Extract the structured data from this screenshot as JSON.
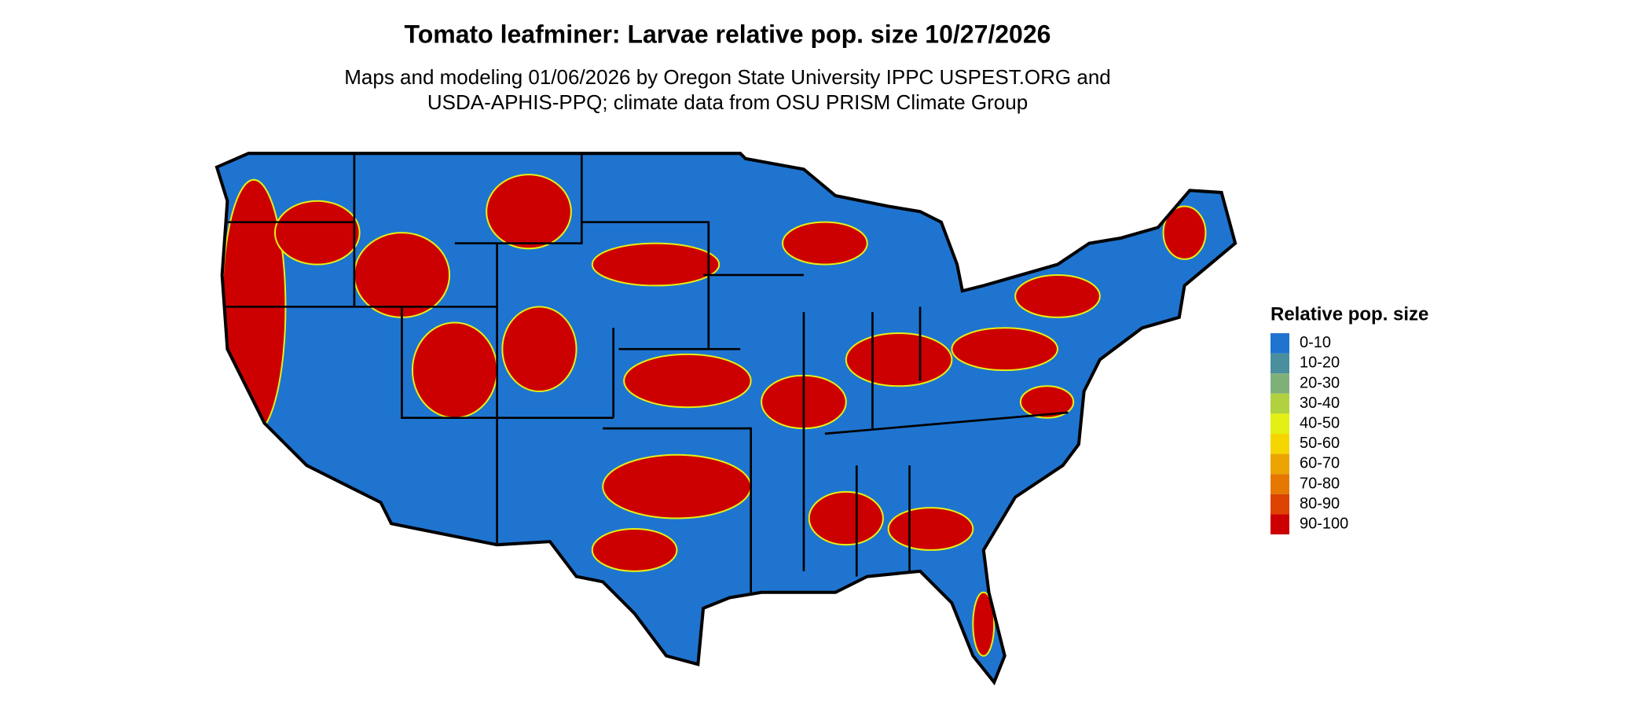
{
  "map": {
    "title": "Tomato leafminer: Larvae relative pop. size 10/27/2026",
    "subtitle": [
      "Maps and modeling 01/06/2026 by Oregon State University IPPC USPEST.ORG and",
      "USDA-APHIS-PPQ; climate data from OSU PRISM Climate Group"
    ],
    "legend": {
      "title": "Relative pop. size",
      "items": [
        {
          "label": "0-10",
          "color": "#1f74d0"
        },
        {
          "label": "10-20",
          "color": "#4a8f9e"
        },
        {
          "label": "20-30",
          "color": "#7fb07a"
        },
        {
          "label": "30-40",
          "color": "#b2d140"
        },
        {
          "label": "40-50",
          "color": "#e4ef14"
        },
        {
          "label": "50-60",
          "color": "#f5d600"
        },
        {
          "label": "60-70",
          "color": "#eca500"
        },
        {
          "label": "70-80",
          "color": "#e67800"
        },
        {
          "label": "80-90",
          "color": "#dc4200"
        },
        {
          "label": "90-100",
          "color": "#cc0000"
        }
      ]
    }
  }
}
